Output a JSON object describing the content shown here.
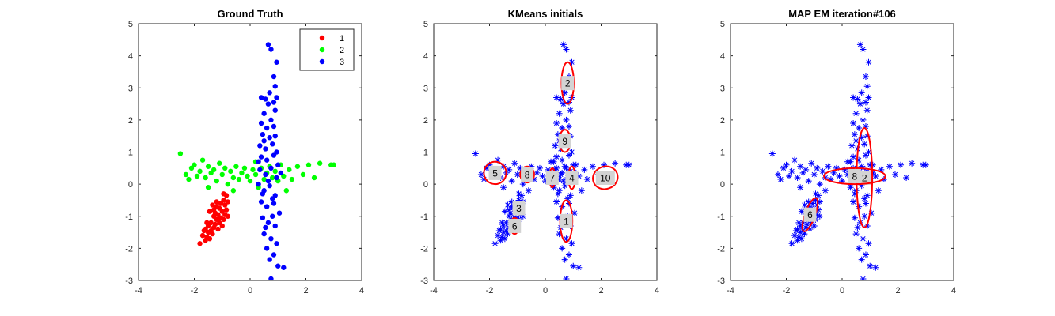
{
  "chart_data": [
    {
      "type": "scatter",
      "title": "Ground Truth",
      "xlim": [
        -4,
        4
      ],
      "ylim": [
        -3,
        5
      ],
      "xticks": [
        -4,
        -2,
        0,
        2,
        4
      ],
      "yticks": [
        -3,
        -2,
        -1,
        0,
        1,
        2,
        3,
        4,
        5
      ],
      "grid": false,
      "legend": {
        "placement": "top-right",
        "entries": [
          "1",
          "2",
          "3"
        ]
      },
      "series": [
        {
          "name": "1",
          "color": "#ff0000",
          "marker": "dot",
          "points": [
            [
              -1.8,
              -1.85
            ],
            [
              -1.7,
              -1.6
            ],
            [
              -1.6,
              -1.75
            ],
            [
              -1.6,
              -1.4
            ],
            [
              -1.55,
              -1.65
            ],
            [
              -1.5,
              -1.5
            ],
            [
              -1.5,
              -1.3
            ],
            [
              -1.45,
              -1.7
            ],
            [
              -1.4,
              -1.45
            ],
            [
              -1.4,
              -1.2
            ],
            [
              -1.35,
              -1.55
            ],
            [
              -1.3,
              -1.35
            ],
            [
              -1.3,
              -1.0
            ],
            [
              -1.3,
              -0.8
            ],
            [
              -1.25,
              -1.25
            ],
            [
              -1.25,
              -0.9
            ],
            [
              -1.2,
              -1.1
            ],
            [
              -1.2,
              -0.7
            ],
            [
              -1.15,
              -1.4
            ],
            [
              -1.15,
              -0.95
            ],
            [
              -1.1,
              -1.2
            ],
            [
              -1.1,
              -0.75
            ],
            [
              -1.05,
              -1.05
            ],
            [
              -1.05,
              -0.6
            ],
            [
              -1.0,
              -1.3
            ],
            [
              -1.0,
              -0.85
            ],
            [
              -0.95,
              -1.1
            ],
            [
              -0.95,
              -0.5
            ],
            [
              -0.9,
              -0.95
            ],
            [
              -0.9,
              -0.65
            ],
            [
              -0.85,
              -0.35
            ],
            [
              -0.85,
              -0.8
            ],
            [
              -0.8,
              -0.55
            ],
            [
              -0.8,
              -1.0
            ],
            [
              -1.35,
              -0.65
            ],
            [
              -1.45,
              -0.85
            ],
            [
              -1.2,
              -0.55
            ],
            [
              -0.95,
              -0.3
            ],
            [
              -1.55,
              -1.2
            ],
            [
              -1.65,
              -1.45
            ]
          ]
        },
        {
          "name": "2",
          "color": "#00ff00",
          "marker": "dot",
          "points": [
            [
              -2.5,
              0.95
            ],
            [
              -2.3,
              0.3
            ],
            [
              -2.2,
              0.15
            ],
            [
              -2.1,
              0.5
            ],
            [
              -2.0,
              0.6
            ],
            [
              -1.9,
              0.25
            ],
            [
              -1.8,
              0.4
            ],
            [
              -1.7,
              0.75
            ],
            [
              -1.6,
              0.2
            ],
            [
              -1.5,
              0.55
            ],
            [
              -1.4,
              0.35
            ],
            [
              -1.3,
              0.45
            ],
            [
              -1.2,
              0.1
            ],
            [
              -1.1,
              0.65
            ],
            [
              -1.0,
              0.3
            ],
            [
              -0.9,
              0.5
            ],
            [
              -0.8,
              0.0
            ],
            [
              -0.7,
              0.4
            ],
            [
              -0.6,
              0.2
            ],
            [
              -0.5,
              0.55
            ],
            [
              -0.4,
              0.15
            ],
            [
              -0.3,
              0.35
            ],
            [
              -0.2,
              0.5
            ],
            [
              -0.1,
              0.25
            ],
            [
              0.0,
              0.1
            ],
            [
              0.1,
              0.45
            ],
            [
              0.2,
              0.3
            ],
            [
              0.3,
              -0.1
            ],
            [
              0.4,
              0.5
            ],
            [
              0.5,
              0.15
            ],
            [
              0.6,
              0.35
            ],
            [
              0.7,
              0.55
            ],
            [
              0.8,
              0.2
            ],
            [
              0.9,
              0.4
            ],
            [
              1.0,
              0.1
            ],
            [
              1.1,
              0.6
            ],
            [
              1.2,
              0.25
            ],
            [
              1.4,
              0.45
            ],
            [
              1.5,
              0.15
            ],
            [
              1.7,
              0.55
            ],
            [
              1.9,
              0.3
            ],
            [
              2.1,
              0.6
            ],
            [
              2.3,
              0.2
            ],
            [
              2.5,
              0.65
            ],
            [
              2.9,
              0.6
            ],
            [
              3.0,
              0.6
            ],
            [
              -1.5,
              -0.1
            ],
            [
              -0.6,
              -0.2
            ],
            [
              0.2,
              0.7
            ],
            [
              1.3,
              -0.2
            ]
          ]
        },
        {
          "name": "3",
          "color": "#0000ff",
          "marker": "dot",
          "points": [
            [
              0.65,
              4.35
            ],
            [
              0.75,
              4.2
            ],
            [
              0.95,
              3.8
            ],
            [
              0.85,
              3.35
            ],
            [
              0.9,
              3.05
            ],
            [
              0.4,
              2.7
            ],
            [
              0.55,
              2.65
            ],
            [
              0.65,
              2.5
            ],
            [
              0.85,
              2.55
            ],
            [
              0.9,
              2.3
            ],
            [
              0.5,
              2.2
            ],
            [
              0.75,
              2.0
            ],
            [
              0.4,
              1.9
            ],
            [
              0.6,
              1.75
            ],
            [
              0.85,
              1.8
            ],
            [
              0.45,
              1.55
            ],
            [
              0.7,
              1.45
            ],
            [
              0.9,
              1.5
            ],
            [
              0.35,
              1.2
            ],
            [
              0.55,
              1.1
            ],
            [
              0.8,
              1.25
            ],
            [
              0.95,
              1.0
            ],
            [
              0.4,
              0.85
            ],
            [
              0.6,
              0.75
            ],
            [
              0.85,
              0.9
            ],
            [
              1.0,
              0.6
            ],
            [
              0.35,
              0.45
            ],
            [
              0.55,
              0.3
            ],
            [
              0.75,
              0.5
            ],
            [
              0.95,
              0.2
            ],
            [
              0.3,
              0.0
            ],
            [
              0.5,
              -0.2
            ],
            [
              0.7,
              -0.05
            ],
            [
              0.9,
              -0.35
            ],
            [
              0.4,
              -0.55
            ],
            [
              0.6,
              -0.7
            ],
            [
              0.85,
              -0.6
            ],
            [
              1.05,
              -0.9
            ],
            [
              0.45,
              -1.05
            ],
            [
              0.65,
              -1.2
            ],
            [
              0.9,
              -1.3
            ],
            [
              0.5,
              -1.55
            ],
            [
              0.75,
              -1.7
            ],
            [
              0.95,
              -1.85
            ],
            [
              0.6,
              -2.0
            ],
            [
              0.85,
              -2.2
            ],
            [
              0.7,
              -2.35
            ],
            [
              1.0,
              -2.55
            ],
            [
              0.75,
              -2.95
            ],
            [
              1.2,
              -2.6
            ],
            [
              0.45,
              -0.3
            ],
            [
              0.8,
              -0.45
            ],
            [
              0.65,
              0.1
            ],
            [
              1.1,
              0.35
            ],
            [
              0.3,
              0.7
            ],
            [
              0.5,
              1.35
            ],
            [
              0.7,
              2.85
            ],
            [
              0.95,
              2.7
            ],
            [
              0.55,
              -1.35
            ],
            [
              0.8,
              -1.0
            ]
          ]
        }
      ]
    },
    {
      "type": "scatter",
      "title": "KMeans initials",
      "xlim": [
        -4,
        4
      ],
      "ylim": [
        -3,
        5
      ],
      "xticks": [
        -4,
        -2,
        0,
        2,
        4
      ],
      "yticks": [
        -3,
        -2,
        -1,
        0,
        1,
        2,
        3,
        4,
        5
      ],
      "grid": false,
      "points_color": "#0000ff",
      "marker": "asterisk",
      "ellipse_color": "#ff0000",
      "label_bg": "#d3d3d3",
      "components": [
        {
          "label": "1",
          "cx": 0.75,
          "cy": -1.15,
          "rx": 0.22,
          "ry": 0.65,
          "angle": 0
        },
        {
          "label": "2",
          "cx": 0.8,
          "cy": 3.15,
          "rx": 0.22,
          "ry": 0.65,
          "angle": 0
        },
        {
          "label": "3",
          "cx": -0.95,
          "cy": -0.75,
          "rx": 0.15,
          "ry": 0.2,
          "angle": 0
        },
        {
          "label": "4",
          "cx": 0.95,
          "cy": 0.2,
          "rx": 0.12,
          "ry": 0.35,
          "angle": 0
        },
        {
          "label": "5",
          "cx": -1.8,
          "cy": 0.35,
          "rx": 0.4,
          "ry": 0.35,
          "angle": 20
        },
        {
          "label": "6",
          "cx": -1.1,
          "cy": -1.3,
          "rx": 0.15,
          "ry": 0.25,
          "angle": 0
        },
        {
          "label": "7",
          "cx": 0.25,
          "cy": 0.2,
          "rx": 0.1,
          "ry": 0.3,
          "angle": 0
        },
        {
          "label": "8",
          "cx": -0.65,
          "cy": 0.3,
          "rx": 0.25,
          "ry": 0.25,
          "angle": 0
        },
        {
          "label": "9",
          "cx": 0.7,
          "cy": 1.35,
          "rx": 0.2,
          "ry": 0.35,
          "angle": 0
        },
        {
          "label": "10",
          "cx": 2.15,
          "cy": 0.2,
          "rx": 0.45,
          "ry": 0.35,
          "angle": 20
        }
      ]
    },
    {
      "type": "scatter",
      "title": "MAP EM iteration#106",
      "xlim": [
        -4,
        4
      ],
      "ylim": [
        -3,
        5
      ],
      "xticks": [
        -4,
        -2,
        0,
        2,
        4
      ],
      "yticks": [
        -3,
        -2,
        -1,
        0,
        1,
        2,
        3,
        4,
        5
      ],
      "grid": false,
      "points_color": "#0000ff",
      "marker": "asterisk",
      "ellipse_color": "#ff0000",
      "label_bg": "#d3d3d3",
      "components": [
        {
          "label": "2",
          "cx": 0.8,
          "cy": 0.2,
          "rx": 0.28,
          "ry": 1.55,
          "angle": 0
        },
        {
          "label": "6",
          "cx": -1.15,
          "cy": -0.95,
          "rx": 0.18,
          "ry": 0.55,
          "angle": -20
        },
        {
          "label": "8",
          "cx": 0.45,
          "cy": 0.25,
          "rx": 1.1,
          "ry": 0.25,
          "angle": 0
        }
      ]
    }
  ]
}
